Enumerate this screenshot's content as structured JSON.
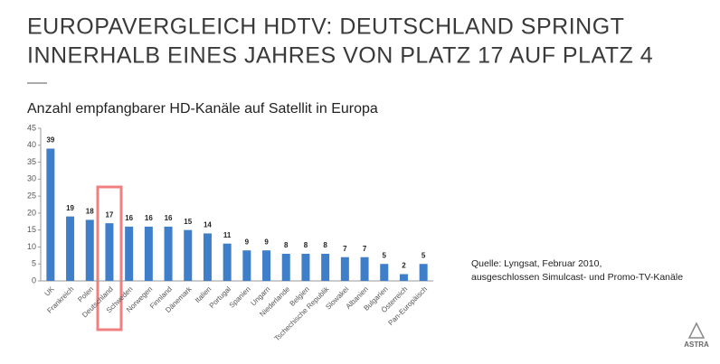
{
  "chart_data": {
    "type": "bar",
    "title": [
      "EUROPAVERGLEICH HDTV: DEUTSCHLAND SPRINGT",
      "INNERHALB EINES JAHRES VON PLATZ 17 AUF PLATZ 4"
    ],
    "subtitle": "Anzahl empfangbarer HD-Kanäle auf Satellit in Europa",
    "source": [
      "Quelle: Lyngsat, Februar 2010,",
      "ausgeschlossen Simulcast- und Promo-TV-Kanäle"
    ],
    "categories": [
      "UK",
      "Frankreich",
      "Polen",
      "Deutschland",
      "Schweden",
      "Norwegen",
      "Finnland",
      "Dänemark",
      "Italien",
      "Portugal",
      "Spanien",
      "Ungarn",
      "Niederlande",
      "Belgien",
      "Tschechische Republik",
      "Slowakei",
      "Albanien",
      "Bulgarien",
      "Österreich",
      "Pan-Europäisch"
    ],
    "values": [
      39,
      19,
      18,
      17,
      16,
      16,
      16,
      15,
      14,
      11,
      9,
      9,
      8,
      8,
      8,
      7,
      7,
      5,
      2,
      5
    ],
    "color": "#3f7fc9",
    "ylim": [
      0,
      45
    ],
    "yticks": [
      0,
      5,
      10,
      15,
      20,
      25,
      30,
      35,
      40,
      45
    ],
    "grid": false
  },
  "logo": "ASTRA"
}
